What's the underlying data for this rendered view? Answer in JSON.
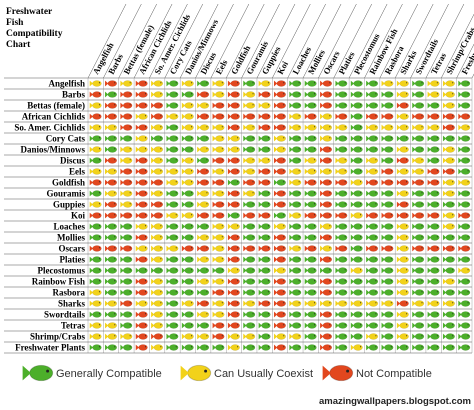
{
  "title": [
    "Freshwater",
    "Fish",
    "Compatibility",
    "Chart"
  ],
  "species": [
    "Angelfish",
    "Barbs",
    "Bettas (female)",
    "African Cichlids",
    "So. Amer. Cichlids",
    "Cory Cats",
    "Danios/Minnows",
    "Discus",
    "Eels",
    "Goldfish",
    "Gouramis",
    "Guppies",
    "Koi",
    "Loaches",
    "Mollies",
    "Oscars",
    "Platies",
    "Plecostomus",
    "Rainbow Fish",
    "Rasbora",
    "Sharks",
    "Swordtails",
    "Tetras",
    "Shrimp/Crabs",
    "Freshwater Plants"
  ],
  "legend": [
    {
      "label": "Generally Compatible",
      "color": "#4caf2a"
    },
    {
      "label": "Can Usually Coexist",
      "color": "#f2d21a"
    },
    {
      "label": "Not Compatible",
      "color": "#e2471e"
    }
  ],
  "matrix": [
    [
      1,
      2,
      1,
      2,
      1,
      0,
      1,
      0,
      1,
      2,
      0,
      1,
      2,
      0,
      0,
      2,
      0,
      0,
      0,
      1,
      1,
      0,
      1,
      1,
      0
    ],
    [
      2,
      0,
      2,
      2,
      1,
      0,
      0,
      2,
      1,
      2,
      1,
      2,
      2,
      0,
      0,
      2,
      0,
      0,
      0,
      0,
      1,
      0,
      1,
      1,
      0
    ],
    [
      1,
      2,
      2,
      2,
      2,
      0,
      1,
      1,
      2,
      2,
      1,
      1,
      2,
      0,
      0,
      2,
      0,
      0,
      0,
      0,
      2,
      0,
      0,
      1,
      0
    ],
    [
      2,
      2,
      2,
      1,
      2,
      1,
      1,
      2,
      2,
      2,
      2,
      2,
      2,
      1,
      2,
      1,
      2,
      0,
      2,
      2,
      1,
      2,
      2,
      2,
      2
    ],
    [
      1,
      1,
      2,
      2,
      1,
      0,
      1,
      1,
      1,
      2,
      1,
      2,
      2,
      1,
      1,
      1,
      1,
      0,
      1,
      1,
      1,
      1,
      1,
      2,
      1
    ],
    [
      0,
      0,
      0,
      1,
      0,
      0,
      0,
      0,
      1,
      1,
      0,
      0,
      1,
      0,
      0,
      1,
      0,
      0,
      0,
      0,
      0,
      0,
      0,
      0,
      0
    ],
    [
      1,
      0,
      1,
      1,
      1,
      0,
      0,
      1,
      1,
      1,
      0,
      0,
      1,
      0,
      0,
      2,
      0,
      0,
      0,
      0,
      1,
      0,
      0,
      1,
      0
    ],
    [
      0,
      2,
      1,
      2,
      1,
      0,
      1,
      0,
      2,
      2,
      1,
      1,
      2,
      0,
      1,
      2,
      1,
      0,
      1,
      0,
      2,
      1,
      0,
      1,
      0
    ],
    [
      1,
      1,
      2,
      2,
      1,
      1,
      1,
      2,
      1,
      2,
      1,
      2,
      2,
      1,
      1,
      1,
      1,
      0,
      1,
      2,
      1,
      1,
      2,
      2,
      0
    ],
    [
      2,
      2,
      2,
      2,
      2,
      1,
      1,
      2,
      2,
      0,
      2,
      2,
      0,
      1,
      2,
      2,
      2,
      1,
      2,
      2,
      2,
      2,
      2,
      1,
      1
    ],
    [
      0,
      1,
      1,
      2,
      1,
      0,
      0,
      1,
      1,
      2,
      1,
      0,
      2,
      0,
      0,
      2,
      0,
      0,
      0,
      0,
      1,
      0,
      0,
      1,
      0
    ],
    [
      1,
      2,
      1,
      2,
      2,
      0,
      0,
      1,
      2,
      2,
      0,
      0,
      2,
      0,
      0,
      2,
      0,
      0,
      0,
      0,
      2,
      0,
      0,
      0,
      0
    ],
    [
      2,
      2,
      2,
      2,
      2,
      1,
      1,
      2,
      2,
      0,
      2,
      2,
      0,
      1,
      2,
      2,
      2,
      1,
      2,
      2,
      2,
      2,
      2,
      1,
      2
    ],
    [
      0,
      0,
      0,
      1,
      1,
      0,
      0,
      0,
      1,
      1,
      0,
      0,
      1,
      0,
      0,
      1,
      0,
      0,
      0,
      0,
      1,
      0,
      0,
      1,
      0
    ],
    [
      0,
      0,
      0,
      2,
      1,
      0,
      0,
      1,
      1,
      2,
      0,
      0,
      2,
      0,
      0,
      2,
      0,
      0,
      0,
      0,
      1,
      0,
      0,
      0,
      0
    ],
    [
      2,
      2,
      2,
      1,
      1,
      1,
      2,
      2,
      1,
      2,
      2,
      2,
      2,
      1,
      2,
      1,
      2,
      0,
      2,
      2,
      1,
      2,
      2,
      2,
      2
    ],
    [
      0,
      0,
      0,
      2,
      1,
      0,
      0,
      1,
      1,
      2,
      0,
      0,
      2,
      0,
      0,
      2,
      0,
      0,
      0,
      0,
      1,
      0,
      0,
      0,
      0
    ],
    [
      0,
      0,
      0,
      0,
      0,
      0,
      0,
      0,
      0,
      1,
      0,
      0,
      1,
      0,
      0,
      0,
      0,
      1,
      0,
      0,
      1,
      0,
      0,
      0,
      1
    ],
    [
      0,
      0,
      0,
      2,
      1,
      0,
      0,
      1,
      1,
      2,
      0,
      0,
      2,
      0,
      0,
      2,
      0,
      0,
      0,
      0,
      1,
      0,
      0,
      1,
      0
    ],
    [
      1,
      0,
      0,
      2,
      1,
      0,
      0,
      0,
      2,
      2,
      0,
      0,
      2,
      0,
      0,
      2,
      0,
      0,
      0,
      0,
      1,
      0,
      0,
      0,
      0
    ],
    [
      1,
      1,
      2,
      1,
      1,
      0,
      1,
      2,
      1,
      2,
      1,
      2,
      2,
      1,
      1,
      1,
      1,
      1,
      1,
      1,
      2,
      1,
      1,
      1,
      0
    ],
    [
      0,
      0,
      0,
      2,
      1,
      0,
      0,
      1,
      1,
      2,
      0,
      0,
      2,
      0,
      0,
      2,
      0,
      0,
      0,
      0,
      1,
      0,
      0,
      0,
      0
    ],
    [
      1,
      1,
      0,
      2,
      1,
      0,
      0,
      0,
      2,
      2,
      0,
      0,
      2,
      0,
      0,
      2,
      0,
      0,
      0,
      0,
      1,
      0,
      0,
      0,
      0
    ],
    [
      1,
      1,
      1,
      2,
      2,
      0,
      1,
      1,
      2,
      1,
      1,
      0,
      1,
      1,
      0,
      2,
      0,
      0,
      1,
      0,
      1,
      0,
      0,
      0,
      0
    ],
    [
      0,
      0,
      0,
      2,
      1,
      0,
      0,
      0,
      0,
      1,
      0,
      0,
      2,
      0,
      0,
      2,
      0,
      1,
      0,
      0,
      0,
      0,
      0,
      0,
      0
    ]
  ],
  "watermark": "amazingwallpapers.blogspot.com"
}
